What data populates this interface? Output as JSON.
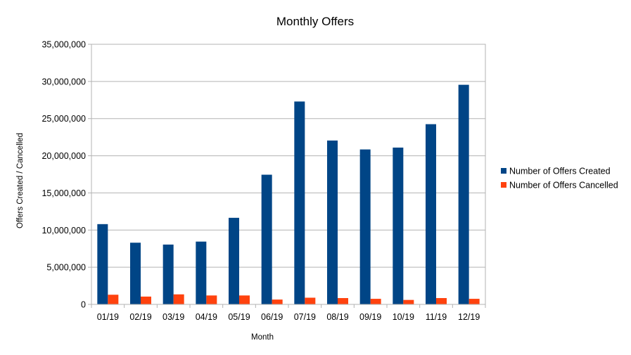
{
  "chart_data": {
    "type": "bar",
    "title": "Monthly Offers",
    "xlabel": "Month",
    "ylabel": "Offers Created / Cancelled",
    "categories": [
      "01/19",
      "02/19",
      "03/19",
      "04/19",
      "05/19",
      "06/19",
      "07/19",
      "08/19",
      "09/19",
      "10/19",
      "11/19",
      "12/19"
    ],
    "series": [
      {
        "name": "Number of Offers Created",
        "color": "#004586",
        "values": [
          10800000,
          8300000,
          8050000,
          8450000,
          11650000,
          17450000,
          27300000,
          22050000,
          20850000,
          21100000,
          24250000,
          29550000
        ]
      },
      {
        "name": "Number of Offers Cancelled",
        "color": "#ff420e",
        "values": [
          1300000,
          1050000,
          1350000,
          1200000,
          1200000,
          650000,
          900000,
          850000,
          750000,
          600000,
          850000,
          750000
        ]
      }
    ],
    "ylim": [
      0,
      35000000
    ],
    "yticks": [
      "0",
      "5,000,000",
      "10,000,000",
      "15,000,000",
      "20,000,000",
      "25,000,000",
      "30,000,000",
      "35,000,000"
    ],
    "grid": true,
    "legend_position": "right"
  }
}
